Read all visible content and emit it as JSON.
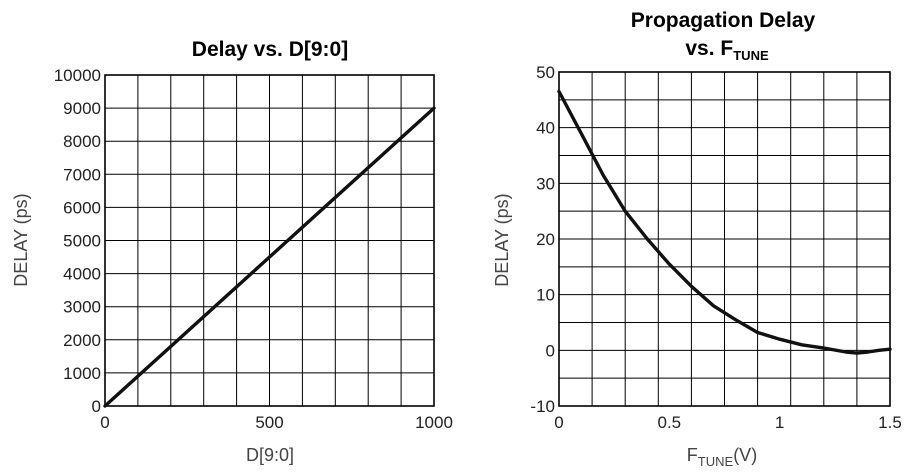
{
  "chart_data": [
    {
      "type": "line",
      "title": "Delay vs. D[9:0]",
      "xlabel": "D[9:0]",
      "ylabel": "DELAY (ps)",
      "xlim": [
        0,
        1000
      ],
      "ylim": [
        0,
        10000
      ],
      "x_grid_step": 100,
      "y_grid_step": 1000,
      "x_ticks": [
        0,
        500,
        1000
      ],
      "x_tick_labels": [
        "0",
        "500",
        "1000"
      ],
      "y_ticks": [
        0,
        1000,
        2000,
        3000,
        4000,
        5000,
        6000,
        7000,
        8000,
        9000,
        10000
      ],
      "y_tick_labels": [
        "0",
        "1000",
        "2000",
        "3000",
        "4000",
        "5000",
        "6000",
        "7000",
        "8000",
        "9000",
        "10000"
      ],
      "grid": true,
      "series": [
        {
          "x": [
            0,
            1000
          ],
          "y": [
            0,
            9000
          ]
        }
      ]
    },
    {
      "type": "line",
      "title": "Propagation Delay",
      "title_line2": "vs. F",
      "title_line2_sub": "TUNE",
      "xlabel": "F",
      "xlabel_sub": "TUNE",
      "xlabel_suffix": "(V)",
      "ylabel": "DELAY (ps)",
      "xlim": [
        0,
        1.5
      ],
      "ylim": [
        -10,
        50
      ],
      "x_grid_step": 0.15,
      "y_grid_step": 5,
      "x_ticks": [
        0,
        0.5,
        1,
        1.5
      ],
      "x_tick_labels": [
        "0",
        "0.5",
        "1",
        "1.5"
      ],
      "y_ticks": [
        -10,
        0,
        10,
        20,
        30,
        40,
        50
      ],
      "y_tick_labels": [
        "-10",
        "0",
        "10",
        "20",
        "30",
        "40",
        "50"
      ],
      "grid": true,
      "series": [
        {
          "x": [
            0,
            0.1,
            0.2,
            0.3,
            0.4,
            0.5,
            0.6,
            0.7,
            0.8,
            0.9,
            1.0,
            1.1,
            1.2,
            1.3,
            1.35,
            1.4,
            1.45,
            1.5
          ],
          "y": [
            46.5,
            39,
            31.5,
            25,
            20,
            15.5,
            11.5,
            8,
            5.5,
            3.2,
            2,
            1,
            0.4,
            -0.3,
            -0.5,
            -0.3,
            0,
            0.2
          ]
        }
      ]
    }
  ]
}
